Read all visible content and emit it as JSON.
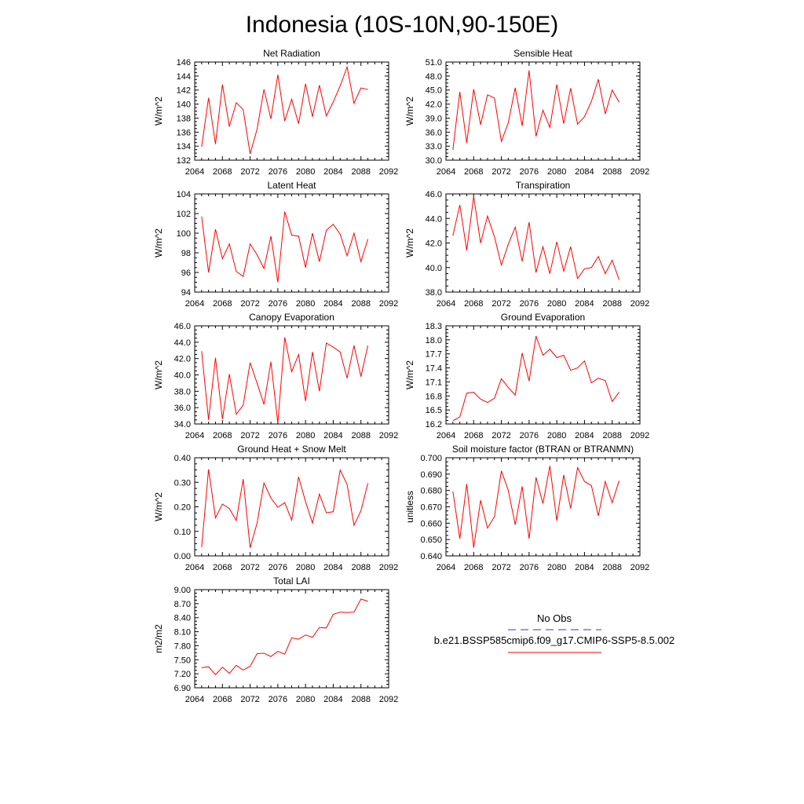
{
  "figure": {
    "title": "Indonesia (10S-10N,90-150E)",
    "legend": {
      "obs_label": "No Obs",
      "obs_color": "#3a3aa0",
      "model_label": "b.e21.BSSP585cmip6.f09_g17.CMIP6-SSP5-8.5.002",
      "model_color": "#ff0000"
    }
  },
  "chart_data": [
    {
      "type": "line",
      "title": "Net Radiation",
      "ylabel": "W/m^2",
      "xlim": [
        2064,
        2092
      ],
      "xticks": [
        2064,
        2068,
        2072,
        2076,
        2080,
        2084,
        2088,
        2092
      ],
      "ylim": [
        132,
        146
      ],
      "yticks": [
        "132",
        "134",
        "136",
        "138",
        "140",
        "142",
        "144",
        "146"
      ],
      "series": [
        {
          "color": "#ff0000",
          "x": [
            2065,
            2066,
            2067,
            2068,
            2069,
            2070,
            2071,
            2072,
            2073,
            2074,
            2075,
            2076,
            2077,
            2078,
            2079,
            2080,
            2081,
            2082,
            2083,
            2084,
            2085,
            2086,
            2087,
            2088,
            2089
          ],
          "y": [
            133.9,
            140.9,
            134.3,
            142.8,
            136.8,
            140.2,
            139.2,
            132.9,
            136.4,
            142.1,
            137.9,
            144.2,
            137.6,
            140.7,
            137.2,
            142.9,
            138.2,
            142.7,
            138.3,
            140.3,
            142.6,
            145.3,
            140.1,
            142.3,
            142.1
          ]
        }
      ]
    },
    {
      "type": "line",
      "title": "Sensible Heat",
      "ylabel": "W/m^2",
      "xlim": [
        2064,
        2092
      ],
      "xticks": [
        2064,
        2068,
        2072,
        2076,
        2080,
        2084,
        2088,
        2092
      ],
      "ylim": [
        30,
        51
      ],
      "yticks": [
        "30.0",
        "33.0",
        "36.0",
        "39.0",
        "42.0",
        "45.0",
        "48.0",
        "51.0"
      ],
      "series": [
        {
          "color": "#ff0000",
          "x": [
            2065,
            2066,
            2067,
            2068,
            2069,
            2070,
            2071,
            2072,
            2073,
            2074,
            2075,
            2076,
            2077,
            2078,
            2079,
            2080,
            2081,
            2082,
            2083,
            2084,
            2085,
            2086,
            2087,
            2088,
            2089
          ],
          "y": [
            32.2,
            44.6,
            33.7,
            45.2,
            37.6,
            44.0,
            43.3,
            34.0,
            38.0,
            45.5,
            37.3,
            49.2,
            35.1,
            40.7,
            37.0,
            46.2,
            37.8,
            45.4,
            37.7,
            39.3,
            42.6,
            47.3,
            39.9,
            45.0,
            42.4
          ]
        }
      ]
    },
    {
      "type": "line",
      "title": "Latent Heat",
      "ylabel": "W/m^2",
      "xlim": [
        2064,
        2092
      ],
      "xticks": [
        2064,
        2068,
        2072,
        2076,
        2080,
        2084,
        2088,
        2092
      ],
      "ylim": [
        94,
        104
      ],
      "yticks": [
        "94",
        "96",
        "98",
        "100",
        "102",
        "104"
      ],
      "series": [
        {
          "color": "#ff0000",
          "x": [
            2065,
            2066,
            2067,
            2068,
            2069,
            2070,
            2071,
            2072,
            2073,
            2074,
            2075,
            2076,
            2077,
            2078,
            2079,
            2080,
            2081,
            2082,
            2083,
            2084,
            2085,
            2086,
            2087,
            2088,
            2089
          ],
          "y": [
            101.7,
            96.0,
            100.4,
            97.4,
            98.9,
            96.1,
            95.6,
            98.9,
            97.8,
            96.4,
            99.7,
            95.0,
            102.2,
            99.8,
            99.7,
            96.5,
            100.0,
            97.1,
            100.3,
            100.9,
            99.9,
            97.7,
            100.0,
            97.1,
            99.4
          ]
        }
      ]
    },
    {
      "type": "line",
      "title": "Transpiration",
      "ylabel": "W/m^2",
      "xlim": [
        2064,
        2092
      ],
      "xticks": [
        2064,
        2068,
        2072,
        2076,
        2080,
        2084,
        2088,
        2092
      ],
      "ylim": [
        38,
        46
      ],
      "yticks": [
        "38.0",
        "40.0",
        "42.0",
        "44.0",
        "46.0"
      ],
      "series": [
        {
          "color": "#ff0000",
          "x": [
            2065,
            2066,
            2067,
            2068,
            2069,
            2070,
            2071,
            2072,
            2073,
            2074,
            2075,
            2076,
            2077,
            2078,
            2079,
            2080,
            2081,
            2082,
            2083,
            2084,
            2085,
            2086,
            2087,
            2088,
            2089
          ],
          "y": [
            42.6,
            45.1,
            41.4,
            45.8,
            42.0,
            44.2,
            42.5,
            40.2,
            41.9,
            43.3,
            40.5,
            43.7,
            39.6,
            41.7,
            39.5,
            42.1,
            39.7,
            41.7,
            39.1,
            39.9,
            40.0,
            40.9,
            39.5,
            40.6,
            39.0
          ]
        }
      ]
    },
    {
      "type": "line",
      "title": "Canopy Evaporation",
      "ylabel": "W/m^2",
      "xlim": [
        2064,
        2092
      ],
      "xticks": [
        2064,
        2068,
        2072,
        2076,
        2080,
        2084,
        2088,
        2092
      ],
      "ylim": [
        34,
        46
      ],
      "yticks": [
        "34.0",
        "36.0",
        "38.0",
        "40.0",
        "42.0",
        "44.0",
        "46.0"
      ],
      "series": [
        {
          "color": "#ff0000",
          "x": [
            2065,
            2066,
            2067,
            2068,
            2069,
            2070,
            2071,
            2072,
            2073,
            2074,
            2075,
            2076,
            2077,
            2078,
            2079,
            2080,
            2081,
            2082,
            2083,
            2084,
            2085,
            2086,
            2087,
            2088,
            2089
          ],
          "y": [
            42.9,
            34.5,
            42.1,
            34.6,
            40.1,
            35.2,
            36.3,
            41.5,
            39.0,
            36.4,
            41.6,
            34.1,
            44.6,
            40.4,
            42.5,
            36.8,
            42.8,
            38.0,
            43.9,
            43.4,
            42.8,
            39.6,
            43.6,
            39.8,
            43.6
          ]
        }
      ]
    },
    {
      "type": "line",
      "title": "Ground Evaporation",
      "ylabel": "W/m^2",
      "xlim": [
        2064,
        2092
      ],
      "xticks": [
        2064,
        2068,
        2072,
        2076,
        2080,
        2084,
        2088,
        2092
      ],
      "ylim": [
        16.2,
        18.3
      ],
      "yticks": [
        "16.2",
        "16.5",
        "16.8",
        "17.1",
        "17.4",
        "17.7",
        "18.0",
        "18.3"
      ],
      "series": [
        {
          "color": "#ff0000",
          "x": [
            2065,
            2066,
            2067,
            2068,
            2069,
            2070,
            2071,
            2072,
            2073,
            2074,
            2075,
            2076,
            2077,
            2078,
            2079,
            2080,
            2081,
            2082,
            2083,
            2084,
            2085,
            2086,
            2087,
            2088,
            2089
          ],
          "y": [
            16.27,
            16.35,
            16.86,
            16.88,
            16.73,
            16.66,
            16.75,
            17.17,
            16.98,
            16.82,
            17.72,
            17.12,
            18.08,
            17.67,
            17.8,
            17.62,
            17.67,
            17.35,
            17.4,
            17.55,
            17.08,
            17.18,
            17.13,
            16.68,
            16.88
          ]
        }
      ]
    },
    {
      "type": "line",
      "title": "Ground Heat + Snow Melt",
      "ylabel": "W/m^2",
      "xlim": [
        2064,
        2092
      ],
      "xticks": [
        2064,
        2068,
        2072,
        2076,
        2080,
        2084,
        2088,
        2092
      ],
      "ylim": [
        0,
        0.4
      ],
      "yticks": [
        "0.00",
        "0.10",
        "0.20",
        "0.30",
        "0.40"
      ],
      "series": [
        {
          "color": "#ff0000",
          "x": [
            2065,
            2066,
            2067,
            2068,
            2069,
            2070,
            2071,
            2072,
            2073,
            2074,
            2075,
            2076,
            2077,
            2078,
            2079,
            2080,
            2081,
            2082,
            2083,
            2084,
            2085,
            2086,
            2087,
            2088,
            2089
          ],
          "y": [
            0.035,
            0.353,
            0.155,
            0.211,
            0.193,
            0.144,
            0.313,
            0.033,
            0.133,
            0.297,
            0.236,
            0.198,
            0.217,
            0.146,
            0.322,
            0.221,
            0.134,
            0.252,
            0.176,
            0.18,
            0.35,
            0.291,
            0.125,
            0.184,
            0.296
          ]
        }
      ]
    },
    {
      "type": "line",
      "title": "Soil moisture factor (BTRAN or BTRANMN)",
      "ylabel": "unitless",
      "xlim": [
        2064,
        2092
      ],
      "xticks": [
        2064,
        2068,
        2072,
        2076,
        2080,
        2084,
        2088,
        2092
      ],
      "ylim": [
        0.64,
        0.7
      ],
      "yticks": [
        "0.640",
        "0.650",
        "0.660",
        "0.670",
        "0.680",
        "0.690",
        "0.700"
      ],
      "series": [
        {
          "color": "#ff0000",
          "x": [
            2065,
            2066,
            2067,
            2068,
            2069,
            2070,
            2071,
            2072,
            2073,
            2074,
            2075,
            2076,
            2077,
            2078,
            2079,
            2080,
            2081,
            2082,
            2083,
            2084,
            2085,
            2086,
            2087,
            2088,
            2089
          ],
          "y": [
            0.6795,
            0.6505,
            0.684,
            0.645,
            0.674,
            0.657,
            0.664,
            0.692,
            0.68,
            0.659,
            0.6825,
            0.6505,
            0.688,
            0.672,
            0.695,
            0.6615,
            0.6895,
            0.669,
            0.694,
            0.6855,
            0.683,
            0.6645,
            0.6855,
            0.6725,
            0.686
          ]
        }
      ]
    },
    {
      "type": "line",
      "title": "Total LAI",
      "ylabel": "m2/m2",
      "xlim": [
        2064,
        2092
      ],
      "xticks": [
        2064,
        2068,
        2072,
        2076,
        2080,
        2084,
        2088,
        2092
      ],
      "ylim": [
        6.9,
        9.0
      ],
      "yticks": [
        "6.90",
        "7.20",
        "7.50",
        "7.80",
        "8.10",
        "8.40",
        "8.70",
        "9.00"
      ],
      "series": [
        {
          "color": "#ff0000",
          "x": [
            2065,
            2066,
            2067,
            2068,
            2069,
            2070,
            2071,
            2072,
            2073,
            2074,
            2075,
            2076,
            2077,
            2078,
            2079,
            2080,
            2081,
            2082,
            2083,
            2084,
            2085,
            2086,
            2087,
            2088,
            2089
          ],
          "y": [
            7.33,
            7.35,
            7.18,
            7.34,
            7.21,
            7.38,
            7.28,
            7.36,
            7.63,
            7.64,
            7.57,
            7.68,
            7.62,
            7.97,
            7.94,
            8.03,
            7.98,
            8.19,
            8.18,
            8.47,
            8.52,
            8.51,
            8.52,
            8.8,
            8.75
          ]
        }
      ]
    }
  ]
}
